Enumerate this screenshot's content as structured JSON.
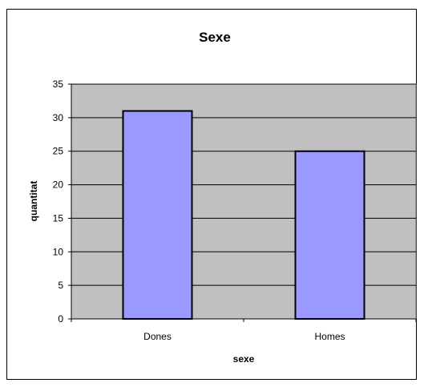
{
  "chart_data": {
    "type": "bar",
    "title": "Sexe",
    "xlabel": "sexe",
    "ylabel": "quantitat",
    "categories": [
      "Dones",
      "Homes"
    ],
    "values": [
      31,
      25
    ],
    "ylim": [
      0,
      35
    ],
    "yticks": [
      "0",
      "5",
      "10",
      "15",
      "20",
      "25",
      "30",
      "35"
    ],
    "grid": true,
    "legend": "none",
    "colors": {
      "bar_fill": "#9999ff",
      "bar_stroke": "#000000",
      "plot_background": "#c0c0c0",
      "gridline": "#000000"
    }
  }
}
